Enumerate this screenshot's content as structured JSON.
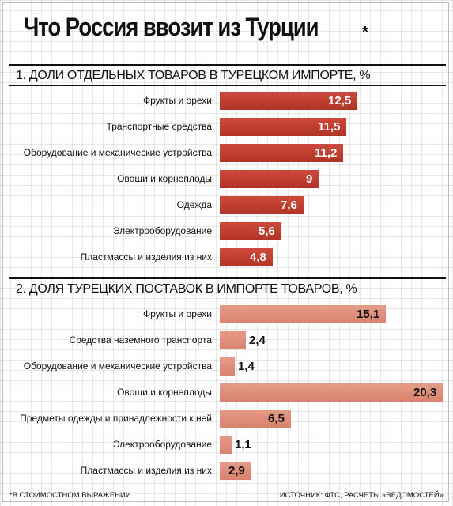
{
  "title": "Что Россия ввозит из Турции",
  "title_mark": "*",
  "footnote_left": "*В СТОИМОСТНОМ ВЫРАЖЕНИИ",
  "footnote_right": "ИСТОЧНИК: ФТС, РАСЧЕТЫ «ВЕДОМОСТЕЙ»",
  "colors": {
    "section1_bar": "#c0392b",
    "section2_bar": "#e1917f"
  },
  "chart_data": [
    {
      "type": "bar",
      "orientation": "horizontal",
      "title": "1. ДОЛИ ОТДЕЛЬНЫХ ТОВАРОВ В ТУРЕЦКОМ ИМПОРТЕ, %",
      "categories": [
        "Фрукты и орехи",
        "Транспортные средства",
        "Оборудование и механические устройства",
        "Овощи и корнеплоды",
        "Одежда",
        "Электрооборудование",
        "Пластмассы и изделия из них"
      ],
      "values": [
        12.5,
        11.5,
        11.2,
        9,
        7.6,
        5.6,
        4.8
      ],
      "value_labels": [
        "12,5",
        "11,5",
        "11,2",
        "9",
        "7,6",
        "5,6",
        "4,8"
      ],
      "xlim": [
        0,
        20.3
      ],
      "grid": true
    },
    {
      "type": "bar",
      "orientation": "horizontal",
      "title": "2. ДОЛЯ ТУРЕЦКИХ ПОСТАВОК В ИМПОРТЕ ТОВАРОВ, %",
      "categories": [
        "Фрукты и орехи",
        "Средства наземного транспорта",
        "Оборудование и механические устройства",
        "Овощи и корнеплоды",
        "Предметы одежды и принадлежности к ней",
        "Электрооборудование",
        "Пластмассы и изделия из них"
      ],
      "values": [
        15.1,
        2.4,
        1.4,
        20.3,
        6.5,
        1.1,
        2.9
      ],
      "value_labels": [
        "15,1",
        "2,4",
        "1,4",
        "20,3",
        "6,5",
        "1,1",
        "2,9"
      ],
      "xlim": [
        0,
        20.3
      ],
      "grid": true
    }
  ]
}
